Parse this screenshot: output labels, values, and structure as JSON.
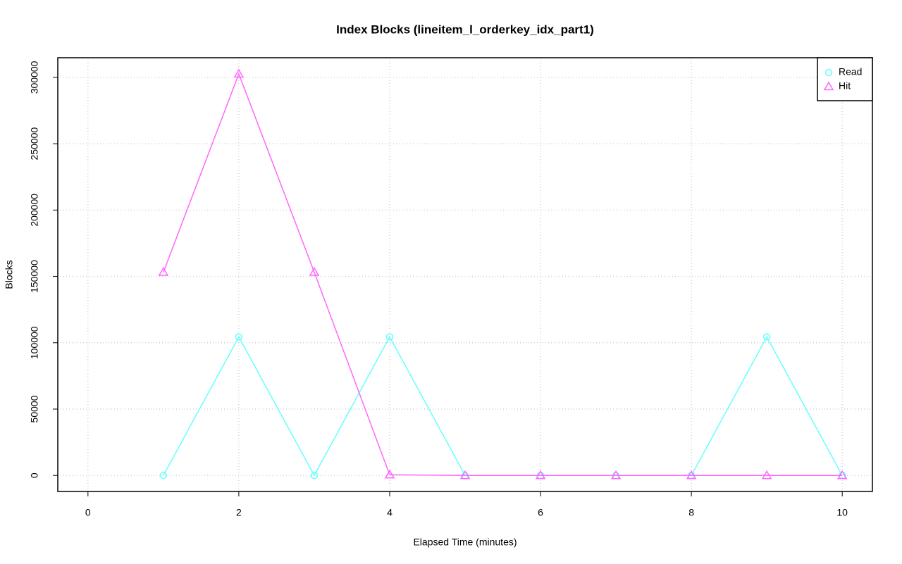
{
  "chart_data": {
    "type": "line",
    "title": "Index Blocks (lineitem_l_orderkey_idx_part1)",
    "x_label": "Elapsed Time (minutes)",
    "y_label": "Blocks",
    "x": [
      1,
      2,
      3,
      4,
      5,
      6,
      7,
      8,
      9,
      10
    ],
    "series": [
      {
        "name": "Read",
        "color": "#66ffff",
        "marker": "circle",
        "values": [
          0,
          104400,
          0,
          104400,
          0,
          0,
          0,
          0,
          104400,
          0
        ]
      },
      {
        "name": "Hit",
        "color": "#ff66ff",
        "marker": "triangle",
        "values": [
          153200,
          302600,
          153200,
          500,
          0,
          0,
          0,
          0,
          0,
          0
        ]
      }
    ],
    "xlim": [
      -0.4,
      10.4
    ],
    "xticks": [
      0,
      2,
      4,
      6,
      8,
      10
    ],
    "ylim": [
      -12100,
      314800
    ],
    "yticks": [
      0,
      50000,
      100000,
      150000,
      200000,
      250000,
      300000
    ],
    "grid": true,
    "legend": "top-right"
  }
}
